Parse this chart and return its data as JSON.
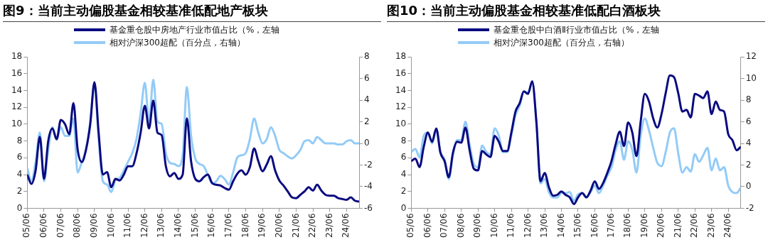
{
  "chart_data": [
    {
      "type": "line",
      "title": "图9：当前主动偏股基金相较基准低配地产板块",
      "legend": "top",
      "x": [
        "2005-06",
        "2005-09",
        "2005-12",
        "2006-03",
        "2006-06",
        "2006-09",
        "2006-12",
        "2007-03",
        "2007-06",
        "2007-09",
        "2007-12",
        "2008-03",
        "2008-06",
        "2008-09",
        "2008-12",
        "2009-03",
        "2009-06",
        "2009-09",
        "2009-12",
        "2010-03",
        "2010-06",
        "2010-09",
        "2010-12",
        "2011-03",
        "2011-06",
        "2011-09",
        "2011-12",
        "2012-03",
        "2012-06",
        "2012-09",
        "2012-12",
        "2013-03",
        "2013-06",
        "2013-09",
        "2013-12",
        "2014-03",
        "2014-06",
        "2014-09",
        "2014-12",
        "2015-03",
        "2015-06",
        "2015-09",
        "2015-12",
        "2016-03",
        "2016-06",
        "2016-09",
        "2016-12",
        "2017-03",
        "2017-06",
        "2017-09",
        "2017-12",
        "2018-03",
        "2018-06",
        "2018-09",
        "2018-12",
        "2019-03",
        "2019-06",
        "2019-09",
        "2019-12",
        "2020-03",
        "2020-06",
        "2020-09",
        "2020-12",
        "2021-03",
        "2021-06",
        "2021-09",
        "2021-12",
        "2022-03",
        "2022-06",
        "2022-09",
        "2022-12",
        "2023-03",
        "2023-06",
        "2023-09",
        "2023-12",
        "2024-03",
        "2024-06",
        "2024-09",
        "2024-12",
        "2025-03"
      ],
      "series": [
        {
          "name": "基金重仓股中房地产行业市值占比（%，左轴",
          "color": "#0a0a80",
          "values": [
            4.0,
            2.9,
            4.5,
            8.5,
            3.5,
            8,
            9.5,
            8.2,
            10.5,
            10,
            8.8,
            12.5,
            7,
            5.5,
            7,
            10,
            15,
            9,
            4,
            4.3,
            2.5,
            3.5,
            3.3,
            4,
            5,
            5,
            6.5,
            9,
            12.2,
            9.5,
            12.8,
            9,
            8.7,
            5,
            3.8,
            4.2,
            3.5,
            4,
            10.7,
            5.6,
            3.5,
            3.2,
            3.7,
            4.0,
            3.0,
            2.8,
            2.7,
            2.4,
            2.2,
            3.2,
            4.1,
            4.5,
            4.0,
            4.9,
            7.1,
            5.6,
            4.4,
            5.2,
            6.2,
            4.5,
            3.3,
            2.7,
            2.0,
            1.3,
            1.2,
            1.6,
            2.0,
            2.5,
            2.1,
            2.8,
            2.1,
            1.6,
            1.5,
            1.5,
            1.2,
            1.1,
            1.0,
            1.3,
            0.9,
            0.8
          ]
        },
        {
          "name": "相对沪深300超配（百分点，右轴）",
          "color": "#93cbf7",
          "axis": "y2",
          "values": [
            -2.3,
            -3.5,
            -1.7,
            1.0,
            -3.5,
            -0.6,
            1.5,
            0.4,
            1.5,
            0.7,
            0.7,
            2.3,
            -2.7,
            -1.7,
            -0.6,
            2.0,
            5.5,
            0.4,
            -3.5,
            -3.8,
            -4.5,
            -3.4,
            -3.2,
            -2.5,
            -1.7,
            -0.9,
            0.4,
            2.8,
            5.6,
            2.0,
            5.9,
            2.0,
            1.8,
            -0.9,
            -1.8,
            -1.9,
            -2.1,
            -1.1,
            5.2,
            0.7,
            -1.4,
            -1.9,
            -2.1,
            -2.9,
            -3.7,
            -3.5,
            -3.0,
            -3.3,
            -3.8,
            -2.7,
            -1.3,
            -1.1,
            -0.9,
            0.4,
            2.3,
            1.0,
            0.0,
            0.4,
            1.5,
            0.7,
            -0.6,
            -0.9,
            -1.2,
            -1.4,
            -1.1,
            -0.6,
            0.2,
            0.3,
            0.0,
            0.6,
            0.3,
            0.0,
            0.0,
            0.0,
            -0.1,
            -0.1,
            0.2,
            0.3,
            0.0,
            0.0
          ]
        }
      ],
      "xlim": [
        "2005-06",
        "2025-03"
      ],
      "xticks": [
        {
          "value": "2005-06",
          "label": "05/06"
        },
        {
          "value": "2006-06",
          "label": "06/06"
        },
        {
          "value": "2007-06",
          "label": "07/06"
        },
        {
          "value": "2008-06",
          "label": "08/06"
        },
        {
          "value": "2009-06",
          "label": "09/06"
        },
        {
          "value": "2010-06",
          "label": "10/06"
        },
        {
          "value": "2011-06",
          "label": "11/06"
        },
        {
          "value": "2012-06",
          "label": "12/06"
        },
        {
          "value": "2013-06",
          "label": "13/06"
        },
        {
          "value": "2014-06",
          "label": "14/06"
        },
        {
          "value": "2015-06",
          "label": "15/06"
        },
        {
          "value": "2016-06",
          "label": "16/06"
        },
        {
          "value": "2017-06",
          "label": "17/06"
        },
        {
          "value": "2018-06",
          "label": "18/06"
        },
        {
          "value": "2019-06",
          "label": "19/06"
        },
        {
          "value": "2020-06",
          "label": "20/06"
        },
        {
          "value": "2021-06",
          "label": "21/06"
        },
        {
          "value": "2022-06",
          "label": "22/06"
        },
        {
          "value": "2023-06",
          "label": "23/06"
        },
        {
          "value": "2024-06",
          "label": "24/06"
        }
      ],
      "ylim": [
        0,
        18
      ],
      "yticks": [
        0,
        2,
        4,
        6,
        8,
        10,
        12,
        14,
        16,
        18
      ],
      "y2lim": [
        -6,
        8
      ],
      "y2ticks": [
        -6,
        -4,
        -2,
        0,
        2,
        4,
        6,
        8
      ]
    },
    {
      "type": "line",
      "title": "图10：当前主动偏股基金相较基准低配白酒板块",
      "legend": "top",
      "x": [
        "2005-06",
        "2005-09",
        "2005-12",
        "2006-03",
        "2006-06",
        "2006-09",
        "2006-12",
        "2007-03",
        "2007-06",
        "2007-09",
        "2007-12",
        "2008-03",
        "2008-06",
        "2008-09",
        "2008-12",
        "2009-03",
        "2009-06",
        "2009-09",
        "2009-12",
        "2010-03",
        "2010-06",
        "2010-09",
        "2010-12",
        "2011-03",
        "2011-06",
        "2011-09",
        "2011-12",
        "2012-03",
        "2012-06",
        "2012-09",
        "2012-12",
        "2013-03",
        "2013-06",
        "2013-09",
        "2013-12",
        "2014-03",
        "2014-06",
        "2014-09",
        "2014-12",
        "2015-03",
        "2015-06",
        "2015-09",
        "2015-12",
        "2016-03",
        "2016-06",
        "2016-09",
        "2016-12",
        "2017-03",
        "2017-06",
        "2017-09",
        "2017-12",
        "2018-03",
        "2018-06",
        "2018-09",
        "2018-12",
        "2019-03",
        "2019-06",
        "2019-09",
        "2019-12",
        "2020-03",
        "2020-06",
        "2020-09",
        "2020-12",
        "2021-03",
        "2021-06",
        "2021-09",
        "2021-12",
        "2022-03",
        "2022-06",
        "2022-09",
        "2022-12",
        "2023-03",
        "2023-06",
        "2023-09",
        "2023-12",
        "2024-03",
        "2024-06",
        "2024-09",
        "2024-12",
        "2025-03"
      ],
      "series": [
        {
          "name": "基金重仓股中白酒Ⅱ行业市值占比（%，左轴",
          "color": "#0a0a80",
          "values": [
            5.6,
            5.9,
            4.9,
            7.3,
            9.0,
            7.9,
            9.5,
            6.6,
            5.6,
            3.7,
            6.6,
            7.9,
            7.8,
            9.6,
            6.9,
            4.7,
            4.5,
            6.8,
            6.4,
            6.1,
            8.6,
            7.9,
            6.8,
            6.8,
            9.0,
            11.5,
            12.5,
            13.9,
            13.6,
            15.1,
            10.3,
            3.2,
            4.2,
            2.5,
            1.5,
            1.6,
            2.0,
            1.6,
            1.3,
            0.5,
            1.3,
            1.8,
            1.3,
            2.1,
            3.2,
            2.3,
            3.0,
            4.2,
            5.6,
            7.6,
            9.1,
            7.4,
            10.2,
            9.0,
            6.2,
            10.3,
            13.6,
            12.7,
            10.7,
            9.6,
            11.2,
            13.7,
            15.8,
            15.6,
            13.7,
            11.5,
            11.7,
            10.8,
            13.6,
            13.4,
            13.1,
            13.9,
            11.2,
            12.7,
            11.7,
            11.5,
            8.8,
            8.1,
            6.9,
            7.3
          ]
        },
        {
          "name": "相对沪深300超配（百分点，右轴）",
          "color": "#93cbf7",
          "axis": "y2",
          "values": [
            3.2,
            3.5,
            2.7,
            4.7,
            5.0,
            4.0,
            5.2,
            3.2,
            2.5,
            0.7,
            2.9,
            4.3,
            4.3,
            6.0,
            3.9,
            2.1,
            1.8,
            3.8,
            3.2,
            3.0,
            5.4,
            4.7,
            3.2,
            3.2,
            4.7,
            6.6,
            7.5,
            8.8,
            8.7,
            9.6,
            6.0,
            0.3,
            0.7,
            -0.5,
            -1.0,
            -1.0,
            -0.6,
            -0.6,
            -0.5,
            -1.3,
            -0.7,
            -0.6,
            -1.0,
            -0.5,
            0.1,
            -0.6,
            0.1,
            1.0,
            1.8,
            3.4,
            4.2,
            2.5,
            4.2,
            3.4,
            1.3,
            4.7,
            6.3,
            5.2,
            3.6,
            2.2,
            1.9,
            3.2,
            5.0,
            5.4,
            3.1,
            1.3,
            1.8,
            1.4,
            3.0,
            2.3,
            2.9,
            3.6,
            1.5,
            2.6,
            1.5,
            1.8,
            0.1,
            -0.5,
            -0.6,
            -0.1
          ]
        }
      ],
      "xlim": [
        "2005-06",
        "2025-03"
      ],
      "xticks": [
        {
          "value": "2005-06",
          "label": "05/06"
        },
        {
          "value": "2006-06",
          "label": "06/06"
        },
        {
          "value": "2007-06",
          "label": "07/06"
        },
        {
          "value": "2008-06",
          "label": "08/06"
        },
        {
          "value": "2009-06",
          "label": "09/06"
        },
        {
          "value": "2010-06",
          "label": "10/06"
        },
        {
          "value": "2011-06",
          "label": "11/06"
        },
        {
          "value": "2012-06",
          "label": "12/06"
        },
        {
          "value": "2013-06",
          "label": "13/06"
        },
        {
          "value": "2014-06",
          "label": "14/06"
        },
        {
          "value": "2015-06",
          "label": "15/06"
        },
        {
          "value": "2016-06",
          "label": "16/06"
        },
        {
          "value": "2017-06",
          "label": "17/06"
        },
        {
          "value": "2018-06",
          "label": "18/06"
        },
        {
          "value": "2019-06",
          "label": "19/06"
        },
        {
          "value": "2020-06",
          "label": "20/06"
        },
        {
          "value": "2021-06",
          "label": "21/06"
        },
        {
          "value": "2022-06",
          "label": "22/06"
        },
        {
          "value": "2023-06",
          "label": "23/06"
        },
        {
          "value": "2024-06",
          "label": "24/06"
        }
      ],
      "ylim": [
        0,
        18
      ],
      "yticks": [
        0,
        2,
        4,
        6,
        8,
        10,
        12,
        14,
        16,
        18
      ],
      "y2lim": [
        -2,
        12
      ],
      "y2ticks": [
        -2,
        0,
        2,
        4,
        6,
        8,
        10,
        12
      ]
    }
  ]
}
